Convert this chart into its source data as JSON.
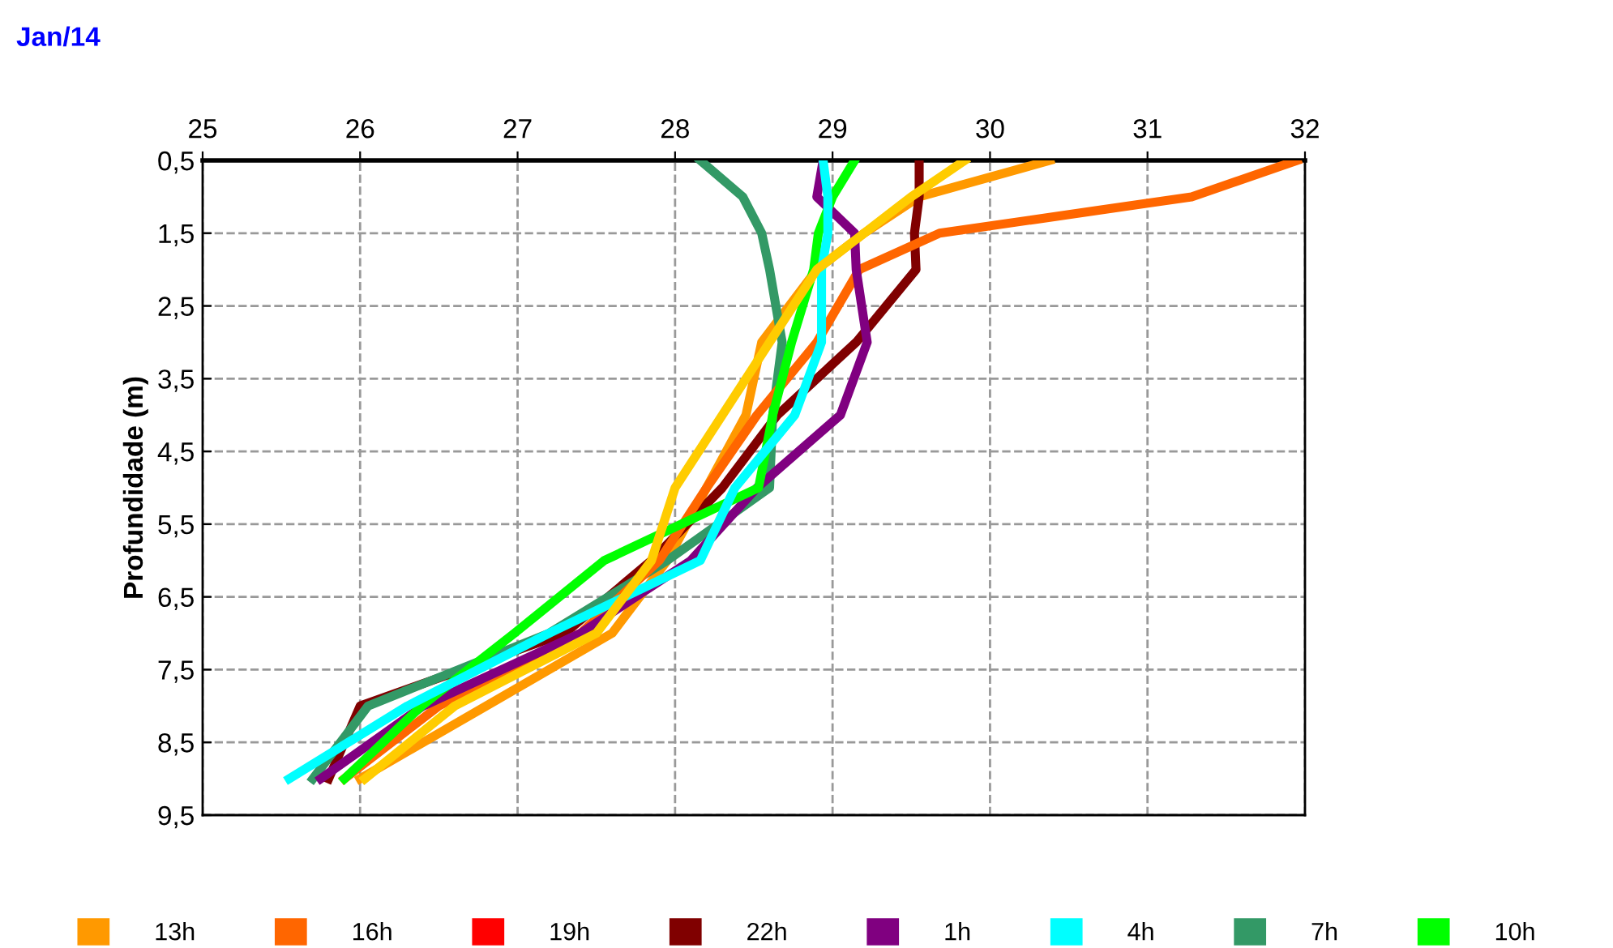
{
  "chart_data": {
    "type": "line",
    "title": "Jan/14",
    "ylabel": "Profundidade (m)",
    "xlim": [
      25,
      32
    ],
    "xticks": [
      25,
      26,
      27,
      28,
      29,
      30,
      31,
      32
    ],
    "ylim": [
      9.5,
      0.5
    ],
    "yticks": [
      {
        "value": 0.5,
        "label": "0,5"
      },
      {
        "value": 1.5,
        "label": "1,5"
      },
      {
        "value": 2.5,
        "label": "2,5"
      },
      {
        "value": 3.5,
        "label": "3,5"
      },
      {
        "value": 4.5,
        "label": "4,5"
      },
      {
        "value": 5.5,
        "label": "5,5"
      },
      {
        "value": 6.5,
        "label": "6,5"
      },
      {
        "value": 7.5,
        "label": "7,5"
      },
      {
        "value": 8.5,
        "label": "8,5"
      },
      {
        "value": 9.5,
        "label": "9,5"
      }
    ],
    "grid": true,
    "legend": "bottom",
    "marker": "none",
    "line_style": "solid",
    "series": [
      {
        "name": "13h",
        "color": "#ff9900",
        "x": [
          30.38,
          29.55,
          29.2,
          28.9,
          28.55,
          28.45,
          28.2,
          27.95,
          27.6,
          26.8,
          26.0
        ],
        "values": [
          0.5,
          1,
          1.5,
          2,
          3,
          4,
          5,
          6,
          7,
          8,
          9
        ]
      },
      {
        "name": "16h",
        "color": "#ff6600",
        "x": [
          31.95,
          31.28,
          29.68,
          29.17,
          28.9,
          28.52,
          28.2,
          27.9,
          27.4,
          26.5,
          25.9
        ],
        "values": [
          0.5,
          1,
          1.5,
          2,
          3,
          4,
          5,
          6,
          7,
          8,
          9
        ]
      },
      {
        "name": "19h",
        "color": "#ff0000",
        "x": [
          null
        ],
        "values": [
          null
        ]
      },
      {
        "name": "22h",
        "color": "#800000",
        "x": [
          29.55,
          29.55,
          29.52,
          29.53,
          29.15,
          28.65,
          28.3,
          27.85,
          27.3,
          26.0,
          25.8
        ],
        "values": [
          0.5,
          1,
          1.5,
          2,
          3,
          4,
          5,
          6,
          7,
          8,
          9
        ]
      },
      {
        "name": "1h",
        "color": "#800080",
        "x": [
          28.94,
          28.9,
          29.14,
          29.15,
          29.22,
          29.05,
          28.52,
          28.1,
          27.4,
          26.4,
          25.75
        ],
        "values": [
          0.5,
          1,
          1.5,
          2,
          3,
          4,
          5,
          6,
          7,
          8,
          9
        ]
      },
      {
        "name": "4h",
        "color": "#00ffff",
        "x": [
          28.94,
          28.97,
          28.97,
          28.93,
          28.93,
          28.76,
          28.38,
          28.16,
          27.2,
          26.3,
          25.55
        ],
        "values": [
          0.5,
          1,
          1.5,
          2,
          3,
          4,
          5,
          6,
          7,
          8,
          9
        ]
      },
      {
        "name": "7h",
        "color": "#339966",
        "x": [
          28.16,
          28.43,
          28.55,
          28.6,
          28.68,
          28.62,
          28.6,
          27.95,
          27.2,
          26.05,
          25.7
        ],
        "values": [
          0.5,
          1,
          1.5,
          2,
          3,
          4,
          5,
          6,
          7,
          8,
          9
        ]
      },
      {
        "name": "10h",
        "color": "#00ff00",
        "x": [
          29.14,
          29.0,
          28.91,
          28.88,
          28.74,
          28.62,
          28.53,
          27.55,
          26.98,
          26.39,
          25.9
        ],
        "values": [
          0.5,
          1,
          1.5,
          2,
          3,
          4,
          5,
          6,
          7,
          8,
          9
        ]
      },
      {
        "color": "#ffcc00",
        "x": [
          29.84,
          29.5,
          29.2,
          28.9,
          28.6,
          28.3,
          28.0,
          27.85,
          27.5,
          26.6,
          26.03
        ],
        "values": [
          0.5,
          1,
          1.5,
          2,
          3,
          4,
          5,
          6,
          7,
          8,
          9
        ]
      }
    ]
  }
}
